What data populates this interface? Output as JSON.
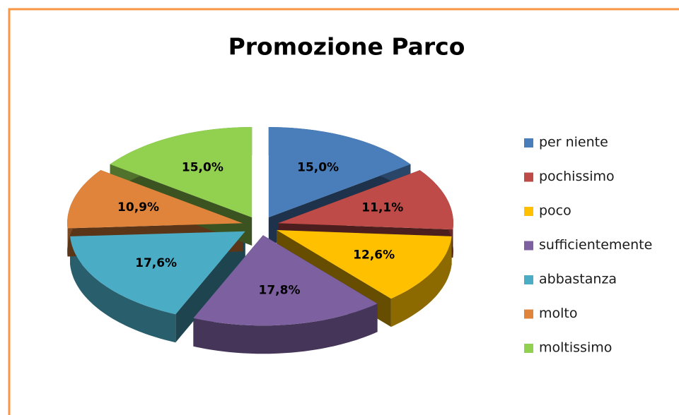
{
  "chart_data": {
    "type": "pie",
    "title": "Promozione Parco",
    "categories": [
      "per niente",
      "pochissimo",
      "poco",
      "sufficientemente",
      "abbastanza",
      "molto",
      "moltissimo"
    ],
    "values": [
      15,
      11.1,
      12.6,
      17.8,
      17.6,
      10.9,
      15
    ],
    "value_labels": [
      "15,0%",
      "11,1%",
      "12,6%",
      "17,8%",
      "17,6%",
      "10,9%",
      "15,0%"
    ],
    "colors": [
      "#4a7ebb",
      "#be4b48",
      "#ffc000",
      "#7d60a0",
      "#4bacc6",
      "#e0843c",
      "#92d050"
    ],
    "legend": "right"
  }
}
